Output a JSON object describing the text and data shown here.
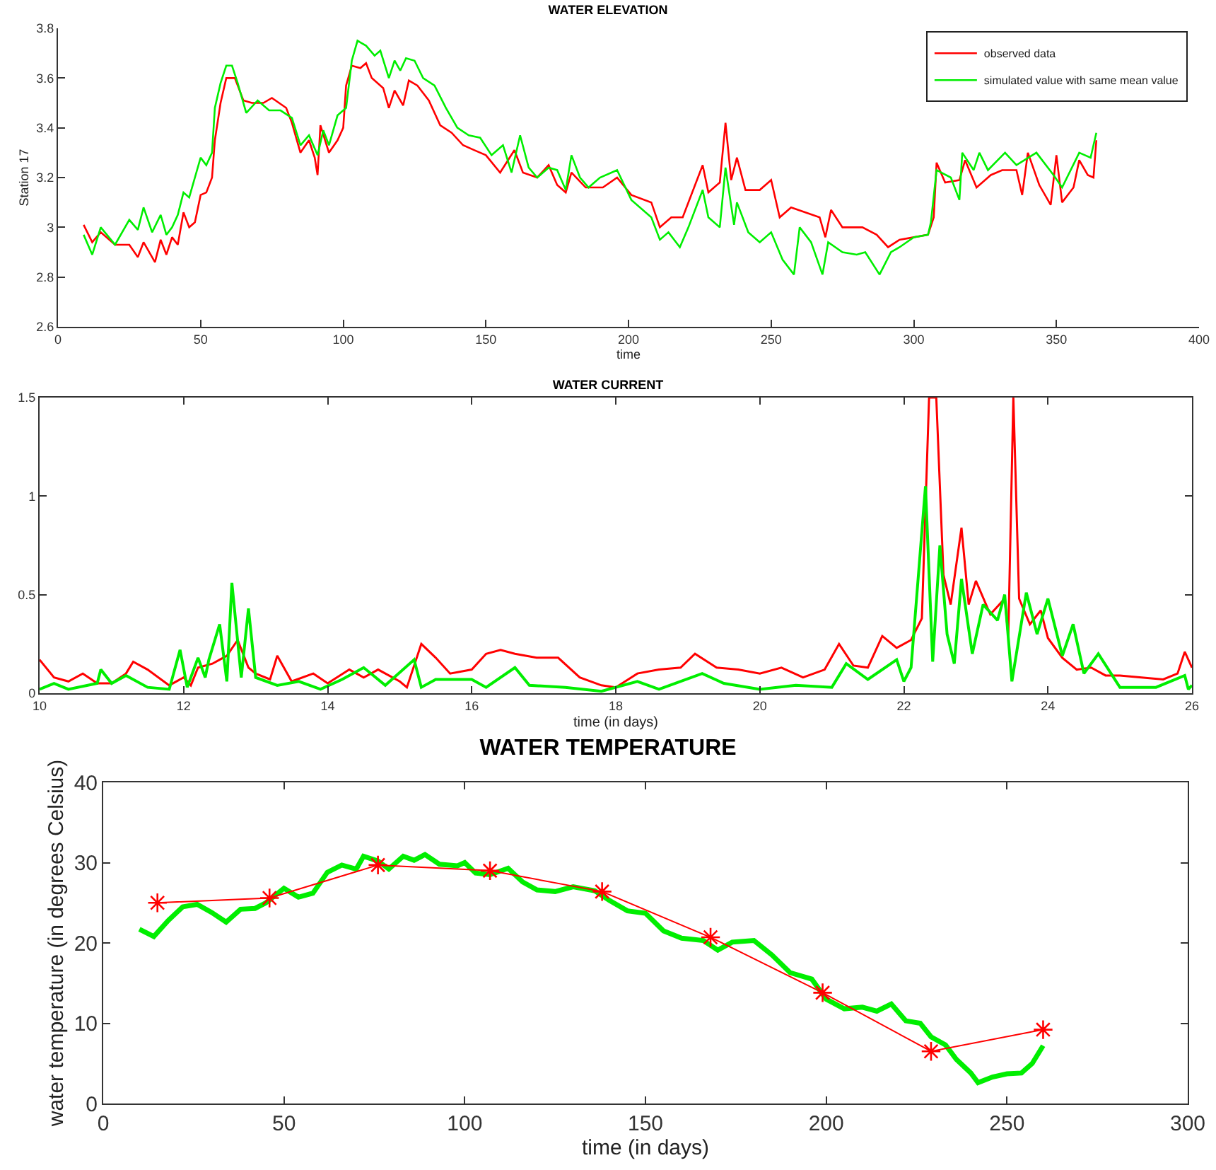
{
  "chart_data": [
    {
      "type": "line",
      "title": "WATER ELEVATION",
      "xlabel": "time",
      "ylabel": "Station 17",
      "xlim": [
        0,
        400
      ],
      "xticks": [
        0,
        50,
        100,
        150,
        200,
        250,
        300,
        350,
        400
      ],
      "ylim": [
        2.6,
        3.8
      ],
      "yticks": [
        2.6,
        2.8,
        3,
        3.2,
        3.4,
        3.6,
        3.8
      ],
      "legend": "top right",
      "grid": false,
      "marker": "none",
      "line_style": "solid",
      "series": [
        {
          "name": "observed data",
          "color": "#ff0000",
          "x": [
            9,
            12,
            15,
            20,
            25,
            28,
            30,
            34,
            36,
            38,
            40,
            42,
            44,
            46,
            48,
            50,
            52,
            54,
            55,
            57,
            59,
            62,
            65,
            68,
            72,
            75,
            80,
            82,
            85,
            88,
            90,
            91,
            92,
            95,
            98,
            100,
            101,
            103,
            106,
            108,
            110,
            114,
            116,
            118,
            121,
            123,
            126,
            130,
            134,
            138,
            142,
            146,
            150,
            155,
            160,
            163,
            168,
            172,
            175,
            178,
            180,
            185,
            191,
            196,
            201,
            208,
            211,
            215,
            219,
            226,
            228,
            232,
            234,
            236,
            238,
            241,
            246,
            250,
            253,
            257,
            262,
            267,
            269,
            271,
            275,
            282,
            287,
            291,
            295,
            300,
            305,
            307,
            308,
            311,
            316,
            318,
            322,
            327,
            331,
            336,
            338,
            340,
            344,
            348,
            350,
            352,
            356,
            358,
            361,
            363,
            364
          ],
          "values": [
            3.01,
            2.94,
            2.98,
            2.93,
            2.93,
            2.88,
            2.94,
            2.86,
            2.95,
            2.89,
            2.96,
            2.93,
            3.06,
            3.0,
            3.02,
            3.13,
            3.14,
            3.2,
            3.35,
            3.5,
            3.6,
            3.6,
            3.51,
            3.5,
            3.5,
            3.52,
            3.48,
            3.42,
            3.3,
            3.35,
            3.28,
            3.21,
            3.41,
            3.3,
            3.35,
            3.4,
            3.57,
            3.65,
            3.64,
            3.66,
            3.6,
            3.56,
            3.48,
            3.55,
            3.49,
            3.59,
            3.57,
            3.51,
            3.41,
            3.38,
            3.33,
            3.31,
            3.29,
            3.22,
            3.31,
            3.22,
            3.2,
            3.25,
            3.17,
            3.14,
            3.22,
            3.16,
            3.16,
            3.2,
            3.13,
            3.1,
            3.0,
            3.04,
            3.04,
            3.25,
            3.14,
            3.18,
            3.42,
            3.19,
            3.28,
            3.15,
            3.15,
            3.19,
            3.04,
            3.08,
            3.06,
            3.04,
            2.96,
            3.07,
            3.0,
            3.0,
            2.97,
            2.92,
            2.95,
            2.96,
            2.97,
            3.04,
            3.26,
            3.18,
            3.19,
            3.27,
            3.16,
            3.21,
            3.23,
            3.23,
            3.13,
            3.3,
            3.17,
            3.09,
            3.29,
            3.1,
            3.16,
            3.27,
            3.21,
            3.2,
            3.35
          ]
        },
        {
          "name": "simulated value with same mean value",
          "color": "#00ee00",
          "x": [
            9,
            12,
            15,
            20,
            25,
            28,
            30,
            33,
            36,
            38,
            40,
            42,
            44,
            46,
            48,
            50,
            52,
            54,
            55,
            57,
            59,
            61,
            63,
            66,
            70,
            74,
            78,
            82,
            85,
            88,
            91,
            93,
            95,
            98,
            101,
            103,
            105,
            108,
            111,
            113,
            116,
            118,
            120,
            122,
            125,
            128,
            132,
            136,
            140,
            144,
            148,
            152,
            156,
            159,
            162,
            165,
            168,
            172,
            175,
            178,
            180,
            183,
            186,
            190,
            196,
            201,
            208,
            211,
            214,
            218,
            221,
            226,
            228,
            232,
            234,
            237,
            238,
            242,
            246,
            250,
            254,
            258,
            260,
            264,
            268,
            270,
            275,
            280,
            283,
            288,
            292,
            295,
            300,
            305,
            306,
            308,
            313,
            316,
            317,
            321,
            323,
            326,
            332,
            336,
            343,
            349,
            352,
            358,
            362,
            364
          ],
          "values": [
            2.97,
            2.89,
            3.0,
            2.93,
            3.03,
            2.99,
            3.08,
            2.98,
            3.05,
            2.97,
            3.0,
            3.05,
            3.14,
            3.12,
            3.2,
            3.28,
            3.25,
            3.3,
            3.48,
            3.58,
            3.65,
            3.65,
            3.58,
            3.46,
            3.51,
            3.47,
            3.47,
            3.44,
            3.33,
            3.37,
            3.29,
            3.39,
            3.33,
            3.45,
            3.48,
            3.67,
            3.75,
            3.73,
            3.69,
            3.71,
            3.6,
            3.67,
            3.63,
            3.68,
            3.67,
            3.6,
            3.57,
            3.48,
            3.4,
            3.37,
            3.36,
            3.29,
            3.33,
            3.22,
            3.37,
            3.24,
            3.2,
            3.24,
            3.23,
            3.15,
            3.29,
            3.2,
            3.16,
            3.2,
            3.23,
            3.11,
            3.04,
            2.95,
            2.98,
            2.92,
            3.0,
            3.15,
            3.04,
            3.0,
            3.24,
            3.01,
            3.1,
            2.98,
            2.94,
            2.98,
            2.87,
            2.81,
            3.0,
            2.94,
            2.81,
            2.94,
            2.9,
            2.89,
            2.9,
            2.81,
            2.9,
            2.92,
            2.96,
            2.97,
            3.02,
            3.23,
            3.2,
            3.11,
            3.3,
            3.23,
            3.3,
            3.23,
            3.3,
            3.25,
            3.3,
            3.21,
            3.16,
            3.3,
            3.28,
            3.38
          ]
        }
      ]
    },
    {
      "type": "line",
      "title": "WATER CURRENT",
      "xlabel": "time (in days)",
      "xlim": [
        10,
        26
      ],
      "xticks": [
        10,
        12,
        14,
        16,
        18,
        20,
        22,
        24,
        26
      ],
      "ylim": [
        0,
        1.5
      ],
      "yticks": [
        0,
        0.5,
        1,
        1.5
      ],
      "legend": false,
      "grid": false,
      "marker": "none",
      "line_style": "solid",
      "series": [
        {
          "color": "#ff0000",
          "x": [
            10,
            10.2,
            10.4,
            10.6,
            10.8,
            11,
            11.2,
            11.3,
            11.5,
            11.8,
            12,
            12.1,
            12.2,
            12.4,
            12.5,
            12.6,
            12.75,
            12.9,
            13,
            13.2,
            13.3,
            13.5,
            13.8,
            14,
            14.3,
            14.5,
            14.7,
            15,
            15.1,
            15.3,
            15.5,
            15.7,
            16,
            16.2,
            16.4,
            16.6,
            16.9,
            17.2,
            17.5,
            17.8,
            18,
            18.3,
            18.6,
            18.9,
            19.1,
            19.4,
            19.7,
            20,
            20.3,
            20.6,
            20.9,
            21.1,
            21.3,
            21.5,
            21.7,
            21.9,
            22.1,
            22.25,
            22.35,
            22.45,
            22.55,
            22.65,
            22.8,
            22.9,
            23,
            23.2,
            23.4,
            23.45,
            23.52,
            23.6,
            23.75,
            23.9,
            24,
            24.2,
            24.4,
            24.6,
            24.8,
            25,
            25.3,
            25.6,
            25.8,
            25.9,
            26
          ],
          "values": [
            0.17,
            0.08,
            0.06,
            0.1,
            0.05,
            0.05,
            0.1,
            0.16,
            0.12,
            0.04,
            0.08,
            0.04,
            0.13,
            0.15,
            0.17,
            0.19,
            0.27,
            0.13,
            0.1,
            0.07,
            0.19,
            0.06,
            0.1,
            0.05,
            0.12,
            0.08,
            0.12,
            0.06,
            0.03,
            0.25,
            0.18,
            0.1,
            0.12,
            0.2,
            0.22,
            0.2,
            0.18,
            0.18,
            0.08,
            0.04,
            0.03,
            0.1,
            0.12,
            0.13,
            0.2,
            0.13,
            0.12,
            0.1,
            0.13,
            0.08,
            0.12,
            0.25,
            0.14,
            0.13,
            0.29,
            0.23,
            0.27,
            0.38,
            1.5,
            1.5,
            0.6,
            0.45,
            0.84,
            0.45,
            0.57,
            0.4,
            0.48,
            0.29,
            1.5,
            0.48,
            0.35,
            0.42,
            0.28,
            0.18,
            0.12,
            0.13,
            0.09,
            0.09,
            0.08,
            0.07,
            0.1,
            0.21,
            0.13
          ]
        },
        {
          "color": "#00ee00",
          "x": [
            10,
            10.2,
            10.4,
            10.8,
            10.85,
            11,
            11.2,
            11.5,
            11.8,
            11.95,
            12.05,
            12.2,
            12.3,
            12.35,
            12.5,
            12.6,
            12.67,
            12.8,
            12.9,
            13,
            13.3,
            13.6,
            13.9,
            14.2,
            14.5,
            14.8,
            15.2,
            15.3,
            15.5,
            16,
            16.2,
            16.6,
            16.8,
            17.3,
            17.8,
            18.3,
            18.6,
            19.2,
            19.5,
            20,
            20.5,
            21,
            21.2,
            21.5,
            21.9,
            22,
            22.1,
            22.3,
            22.4,
            22.5,
            22.6,
            22.7,
            22.8,
            22.95,
            23.1,
            23.3,
            23.4,
            23.5,
            23.7,
            23.85,
            24,
            24.2,
            24.35,
            24.5,
            24.7,
            25,
            25.5,
            25.9,
            25.95,
            26
          ],
          "values": [
            0.02,
            0.05,
            0.02,
            0.05,
            0.12,
            0.05,
            0.09,
            0.03,
            0.02,
            0.22,
            0.03,
            0.18,
            0.08,
            0.17,
            0.35,
            0.06,
            0.56,
            0.08,
            0.43,
            0.08,
            0.04,
            0.06,
            0.02,
            0.07,
            0.13,
            0.04,
            0.17,
            0.03,
            0.07,
            0.07,
            0.03,
            0.13,
            0.04,
            0.03,
            0.01,
            0.06,
            0.02,
            0.1,
            0.05,
            0.02,
            0.04,
            0.03,
            0.15,
            0.07,
            0.17,
            0.06,
            0.13,
            1.05,
            0.16,
            0.75,
            0.3,
            0.15,
            0.58,
            0.2,
            0.45,
            0.37,
            0.5,
            0.06,
            0.51,
            0.3,
            0.48,
            0.19,
            0.35,
            0.1,
            0.2,
            0.03,
            0.03,
            0.09,
            0.02,
            0.04
          ]
        }
      ]
    },
    {
      "type": "line",
      "title": "WATER TEMPERATURE",
      "xlabel": "time (in days)",
      "ylabel": "water temperature (in degrees Celsius)",
      "xlim": [
        0,
        300
      ],
      "xticks": [
        0,
        50,
        100,
        150,
        200,
        250,
        300
      ],
      "ylim": [
        0,
        40
      ],
      "yticks": [
        0,
        10,
        20,
        30,
        40
      ],
      "legend": false,
      "grid": false,
      "line_style": "solid",
      "series": [
        {
          "color": "#00ee00",
          "marker": "none",
          "x": [
            10,
            14,
            18,
            22,
            26,
            30,
            34,
            38,
            42,
            45,
            50,
            54,
            58,
            62,
            66,
            70,
            72,
            76,
            79,
            83,
            86,
            89,
            93,
            98,
            100,
            103,
            107,
            112,
            116,
            120,
            125,
            130,
            136,
            140,
            145,
            150,
            155,
            160,
            166,
            170,
            174,
            180,
            185,
            190,
            196,
            200,
            205,
            210,
            214,
            218,
            222,
            226,
            229,
            233,
            236,
            240,
            242,
            246,
            250,
            254,
            257,
            260
          ],
          "values": [
            21.7,
            20.8,
            22.8,
            24.5,
            24.8,
            23.8,
            22.6,
            24.2,
            24.3,
            25,
            26.8,
            25.7,
            26.2,
            28.8,
            29.7,
            29.2,
            30.8,
            30.2,
            29.2,
            30.8,
            30.3,
            31,
            29.8,
            29.6,
            30,
            28.7,
            28.5,
            29.3,
            27.6,
            26.6,
            26.4,
            27,
            26.5,
            25.3,
            24,
            23.7,
            21.5,
            20.6,
            20.3,
            19.1,
            20.1,
            20.3,
            18.5,
            16.3,
            15.5,
            13,
            11.8,
            12,
            11.5,
            12.4,
            10.3,
            10,
            8.3,
            7.3,
            5.5,
            3.8,
            2.6,
            3.3,
            3.7,
            3.8,
            5,
            7.2
          ]
        },
        {
          "color": "#ff0000",
          "marker": "cross",
          "x": [
            15,
            46,
            76,
            107,
            138,
            168,
            199,
            229,
            260
          ],
          "values": [
            25,
            25.6,
            29.7,
            29,
            26.4,
            20.7,
            13.8,
            6.5,
            9.2
          ]
        }
      ]
    }
  ]
}
